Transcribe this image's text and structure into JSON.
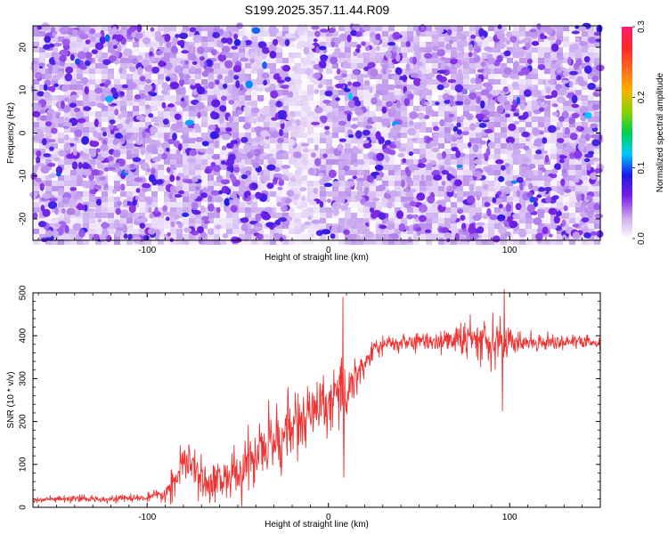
{
  "figure_title": "S199.2025.357.11.44.R09",
  "chart_data": [
    {
      "type": "heatmap",
      "name": "spectrogram",
      "xlabel": "Height of straight line (km)",
      "ylabel": "Frequency (Hz)",
      "xlim": [
        -163,
        150
      ],
      "ylim": [
        -25,
        25
      ],
      "xticks": [
        -100,
        0,
        100
      ],
      "yticks": [
        -20,
        -10,
        0,
        10,
        20
      ],
      "colorbar": {
        "label": "Normalized spectral amplitude",
        "range": [
          0.0,
          0.3
        ],
        "ticks": [
          0.0,
          0.1,
          0.2,
          0.3
        ],
        "colors": [
          "#ffffff",
          "#c9a8ef",
          "#7a1fe6",
          "#1a1ae6",
          "#00c8ff",
          "#00d24b",
          "#b4d200",
          "#ffb000",
          "#ff2828"
        ]
      },
      "pattern": "noise-like speckle field; pale vertical band near x=-20 to -10 km; scattered high-amplitude points up to ~0.15"
    },
    {
      "type": "line",
      "name": "snr",
      "xlabel": "Height of straight line (km)",
      "ylabel": "SNR (10 * v/v)",
      "xlim": [
        -163,
        150
      ],
      "ylim": [
        0,
        500
      ],
      "xticks": [
        -100,
        0,
        100
      ],
      "yticks": [
        0,
        100,
        200,
        300,
        400,
        500
      ],
      "color": "#ee3333",
      "series": [
        {
          "name": "SNR",
          "x": [
            -163,
            -140,
            -120,
            -100,
            -90,
            -85,
            -80,
            -75,
            -70,
            -60,
            -50,
            -45,
            -40,
            -35,
            -30,
            -25,
            -20,
            -15,
            -10,
            -5,
            0,
            5,
            10,
            15,
            20,
            25,
            30,
            40,
            50,
            60,
            70,
            80,
            85,
            90,
            95,
            100,
            105,
            110,
            120,
            130,
            140,
            150
          ],
          "values": [
            18,
            19,
            20,
            22,
            30,
            60,
            100,
            95,
            60,
            65,
            75,
            95,
            125,
            140,
            155,
            170,
            185,
            200,
            215,
            230,
            240,
            255,
            270,
            310,
            330,
            370,
            378,
            383,
            386,
            388,
            390,
            392,
            395,
            398,
            390,
            385,
            383,
            385,
            386,
            386,
            385,
            383
          ],
          "noise_amplitude": [
            7,
            7,
            7,
            8,
            15,
            35,
            45,
            45,
            40,
            45,
            55,
            60,
            65,
            70,
            75,
            80,
            85,
            70,
            65,
            60,
            55,
            60,
            70,
            45,
            30,
            25,
            20,
            20,
            20,
            22,
            28,
            45,
            55,
            60,
            60,
            30,
            20,
            18,
            16,
            16,
            16,
            16
          ]
        }
      ],
      "spikes": [
        {
          "x": 8,
          "y": 490
        },
        {
          "x": 8.5,
          "y": 70
        },
        {
          "x": 97,
          "y": 510
        },
        {
          "x": 96,
          "y": 225
        }
      ]
    }
  ]
}
